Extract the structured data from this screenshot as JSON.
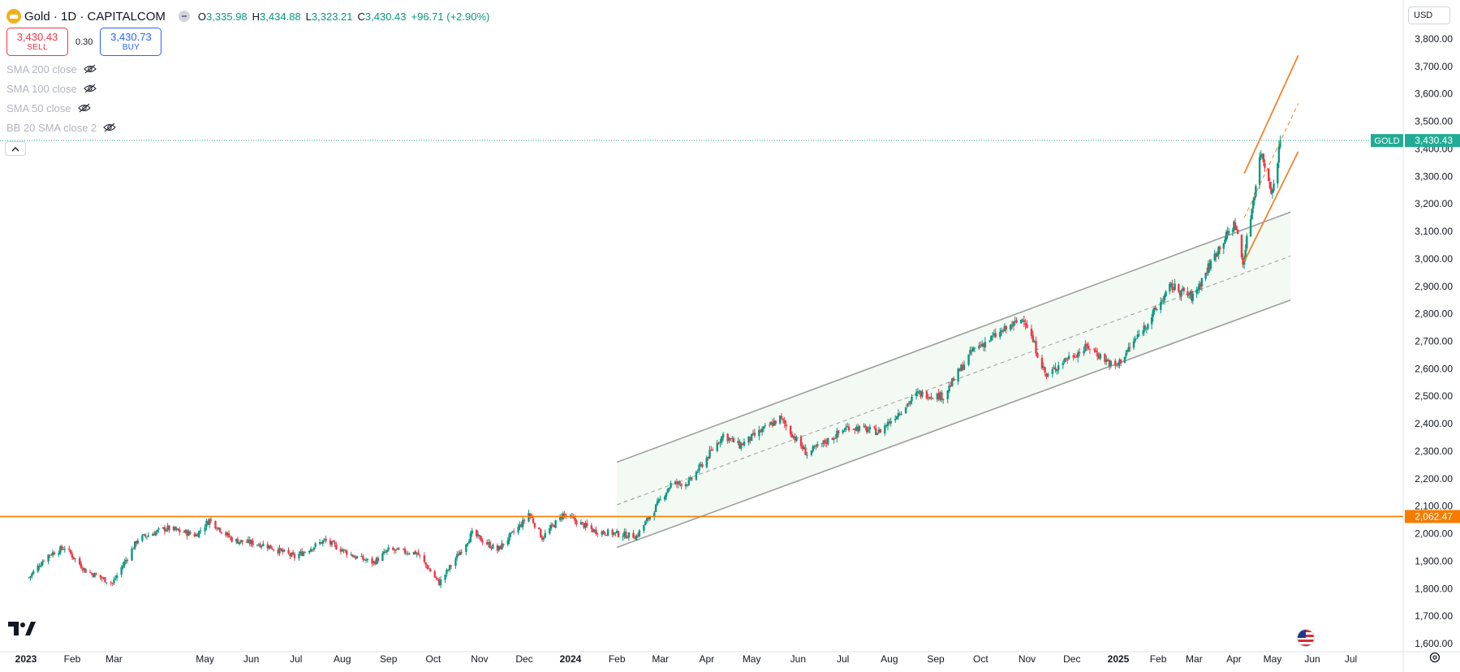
{
  "symbol": {
    "title": "Gold · 1D · CAPITALCOM",
    "ohlc": [
      {
        "k": "O",
        "v": "3,335.98"
      },
      {
        "k": "H",
        "v": "3,434.88"
      },
      {
        "k": "L",
        "v": "3,323.21"
      },
      {
        "k": "C",
        "v": "3,430.43"
      }
    ],
    "change": "+96.71 (+2.90%)"
  },
  "trade": {
    "sell_price": "3,430.43",
    "sell_label": "SELL",
    "spread": "0.30",
    "buy_price": "3,430.73",
    "buy_label": "BUY"
  },
  "indicators": [
    "SMA 200 close",
    "SMA 100 close",
    "SMA 50 close",
    "BB 20 SMA close 2"
  ],
  "currency": "USD",
  "colors": {
    "up": "#089981",
    "down": "#f23645",
    "level_line": "#f57c00",
    "channel": "#9e9e9e",
    "channel_fill": "#e8f5e9",
    "orange_channel": "#f0842c",
    "last_price": "#22ab94"
  },
  "price_axis": {
    "labels": [
      "3,800.00",
      "3,700.00",
      "3,600.00",
      "3,500.00",
      "3,400.00",
      "3,300.00",
      "3,200.00",
      "3,100.00",
      "3,000.00",
      "2,900.00",
      "2,800.00",
      "2,700.00",
      "2,600.00",
      "2,500.00",
      "2,400.00",
      "2,300.00",
      "2,200.00",
      "2,100.00",
      "2,000.00",
      "1,900.00",
      "1,800.00",
      "1,700.00",
      "1,600.00"
    ]
  },
  "time_axis": {
    "labels": [
      "2023",
      "Feb",
      "Mar",
      "May",
      "Jun",
      "Jul",
      "Aug",
      "Sep",
      "Oct",
      "Nov",
      "Dec",
      "2024",
      "Feb",
      "Mar",
      "Apr",
      "May",
      "Jun",
      "Jul",
      "Aug",
      "Sep",
      "Oct",
      "Nov",
      "Dec",
      "2025",
      "Feb",
      "Mar",
      "Apr",
      "May",
      "Jun",
      "Jul"
    ],
    "bold": [
      "2023",
      "2024",
      "2025"
    ]
  },
  "last_price_tag": {
    "symbol": "GOLD",
    "value": "3,430.43"
  },
  "level_tag": {
    "value": "2,062.47"
  },
  "chart_data": {
    "type": "candlestick",
    "symbol": "GOLD",
    "interval": "1D",
    "ylim": [
      1600,
      3800
    ],
    "xlim": [
      "2023-01-01",
      "2025-07-31"
    ],
    "last_price": 3430.43,
    "horizontal_level": 2062.47,
    "series": [
      {
        "name": "GOLD",
        "points": [
          {
            "date": "2023-01-03",
            "close": 1840
          },
          {
            "date": "2023-01-15",
            "close": 1920
          },
          {
            "date": "2023-01-27",
            "close": 1950
          },
          {
            "date": "2023-02-10",
            "close": 1865
          },
          {
            "date": "2023-02-28",
            "close": 1820
          },
          {
            "date": "2023-03-17",
            "close": 1980
          },
          {
            "date": "2023-04-05",
            "close": 2020
          },
          {
            "date": "2023-04-25",
            "close": 1995
          },
          {
            "date": "2023-05-04",
            "close": 2050
          },
          {
            "date": "2023-05-20",
            "close": 1975
          },
          {
            "date": "2023-06-10",
            "close": 1960
          },
          {
            "date": "2023-06-30",
            "close": 1915
          },
          {
            "date": "2023-07-20",
            "close": 1975
          },
          {
            "date": "2023-08-10",
            "close": 1915
          },
          {
            "date": "2023-08-22",
            "close": 1895
          },
          {
            "date": "2023-09-01",
            "close": 1940
          },
          {
            "date": "2023-09-20",
            "close": 1930
          },
          {
            "date": "2023-10-05",
            "close": 1820
          },
          {
            "date": "2023-10-27",
            "close": 2000
          },
          {
            "date": "2023-11-13",
            "close": 1940
          },
          {
            "date": "2023-11-30",
            "close": 2040
          },
          {
            "date": "2023-12-04",
            "close": 2075
          },
          {
            "date": "2023-12-13",
            "close": 1985
          },
          {
            "date": "2023-12-27",
            "close": 2070
          },
          {
            "date": "2024-01-17",
            "close": 2010
          },
          {
            "date": "2024-02-14",
            "close": 1990
          },
          {
            "date": "2024-03-08",
            "close": 2180
          },
          {
            "date": "2024-03-20",
            "close": 2185
          },
          {
            "date": "2024-04-12",
            "close": 2360
          },
          {
            "date": "2024-04-23",
            "close": 2320
          },
          {
            "date": "2024-05-20",
            "close": 2420
          },
          {
            "date": "2024-06-07",
            "close": 2290
          },
          {
            "date": "2024-07-05",
            "close": 2390
          },
          {
            "date": "2024-07-25",
            "close": 2370
          },
          {
            "date": "2024-08-20",
            "close": 2510
          },
          {
            "date": "2024-09-06",
            "close": 2500
          },
          {
            "date": "2024-09-26",
            "close": 2670
          },
          {
            "date": "2024-10-30",
            "close": 2785
          },
          {
            "date": "2024-11-14",
            "close": 2570
          },
          {
            "date": "2024-11-25",
            "close": 2630
          },
          {
            "date": "2024-12-12",
            "close": 2680
          },
          {
            "date": "2024-12-30",
            "close": 2605
          },
          {
            "date": "2025-01-24",
            "close": 2770
          },
          {
            "date": "2025-02-11",
            "close": 2900
          },
          {
            "date": "2025-02-28",
            "close": 2860
          },
          {
            "date": "2025-03-20",
            "close": 3040
          },
          {
            "date": "2025-04-02",
            "close": 3130
          },
          {
            "date": "2025-04-08",
            "close": 2980
          },
          {
            "date": "2025-04-22",
            "close": 3390
          },
          {
            "date": "2025-05-01",
            "close": 3240
          },
          {
            "date": "2025-05-07",
            "close": 3430
          }
        ]
      }
    ],
    "drawings": {
      "gray_channel": {
        "start": {
          "date": "2024-02-01",
          "price": 2260
        },
        "end": {
          "date": "2025-05-15",
          "price": 3170
        },
        "lower_start_price": 1950,
        "lower_end_price": 2850
      },
      "orange_channel": {
        "start": {
          "date": "2025-04-09",
          "price": 2990
        },
        "end": {
          "date": "2025-05-21",
          "price": 3390
        },
        "upper_start_price": 3310,
        "upper_end_price": 3740
      }
    }
  }
}
